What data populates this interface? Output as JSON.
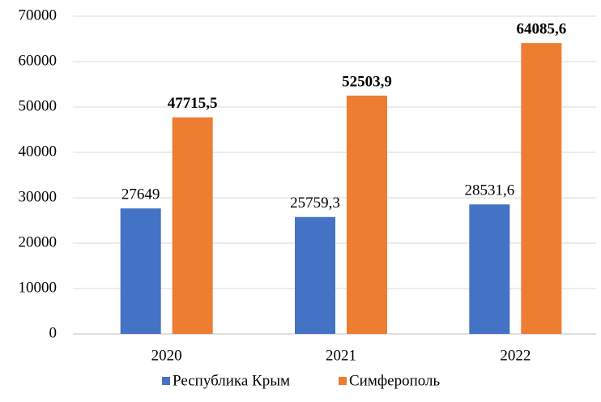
{
  "chart_data": {
    "type": "bar",
    "categories": [
      "2020",
      "2021",
      "2022"
    ],
    "series": [
      {
        "name": "Республика Крым",
        "color": "#4472c4",
        "values": [
          27649,
          25759.3,
          28531.6
        ],
        "value_labels": [
          "27649",
          "25759,3",
          "28531,6"
        ]
      },
      {
        "name": "Симферополь",
        "color": "#ed7d31",
        "values": [
          47715.5,
          52503.9,
          64085.6
        ],
        "value_labels": [
          "47715,5",
          "52503,9",
          "64085,6"
        ]
      }
    ],
    "ylim": [
      0,
      70000
    ],
    "yticks": [
      0,
      10000,
      20000,
      30000,
      40000,
      50000,
      60000,
      70000
    ],
    "grid": true,
    "legend": "bottom"
  }
}
